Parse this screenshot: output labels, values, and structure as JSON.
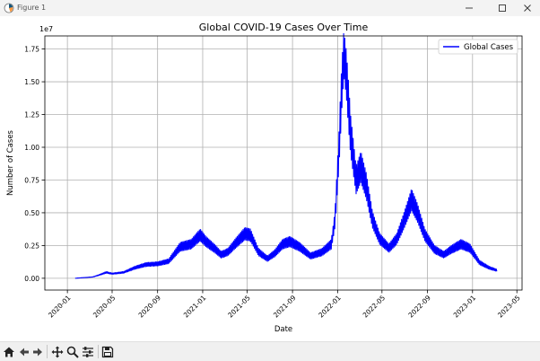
{
  "window": {
    "title": "Figure 1"
  },
  "toolbar": {
    "buttons": [
      {
        "name": "home-icon"
      },
      {
        "name": "back-arrow-icon"
      },
      {
        "name": "forward-arrow-icon"
      },
      {
        "name": "pan-icon"
      },
      {
        "name": "zoom-icon"
      },
      {
        "name": "configure-subplots-icon"
      },
      {
        "name": "save-icon"
      }
    ]
  },
  "chart_data": {
    "type": "line",
    "title": "Global COVID-19 Cases Over Time",
    "xlabel": "Date",
    "ylabel": "Number of Cases",
    "y_offset_label": "1e7",
    "x_tick_labels": [
      "2020-01",
      "2020-05",
      "2020-09",
      "2021-01",
      "2021-05",
      "2021-09",
      "2022-01",
      "2022-05",
      "2022-09",
      "2023-01",
      "2023-05"
    ],
    "y_tick_labels": [
      "0.00",
      "0.25",
      "0.50",
      "0.75",
      "1.00",
      "1.25",
      "1.50",
      "1.75"
    ],
    "xlim": [
      "2019-11-01",
      "2023-05-15"
    ],
    "ylim": [
      -0.09,
      1.85
    ],
    "grid": true,
    "legend_position": "top-right",
    "color": "#0000ff",
    "series": [
      {
        "name": "Global Cases",
        "points": [
          [
            "2020-01-22",
            0.0
          ],
          [
            "2020-02-15",
            0.005
          ],
          [
            "2020-03-10",
            0.01
          ],
          [
            "2020-04-01",
            0.03
          ],
          [
            "2020-04-15",
            0.045
          ],
          [
            "2020-05-01",
            0.035
          ],
          [
            "2020-06-01",
            0.045
          ],
          [
            "2020-07-01",
            0.08
          ],
          [
            "2020-08-01",
            0.105
          ],
          [
            "2020-09-01",
            0.11
          ],
          [
            "2020-10-01",
            0.13
          ],
          [
            "2020-11-01",
            0.24
          ],
          [
            "2020-12-01",
            0.26
          ],
          [
            "2020-12-25",
            0.33
          ],
          [
            "2021-01-10",
            0.28
          ],
          [
            "2021-02-01",
            0.23
          ],
          [
            "2021-02-20",
            0.18
          ],
          [
            "2021-03-10",
            0.2
          ],
          [
            "2021-04-01",
            0.27
          ],
          [
            "2021-04-25",
            0.34
          ],
          [
            "2021-05-10",
            0.33
          ],
          [
            "2021-06-01",
            0.2
          ],
          [
            "2021-06-25",
            0.15
          ],
          [
            "2021-07-15",
            0.19
          ],
          [
            "2021-08-05",
            0.26
          ],
          [
            "2021-08-25",
            0.28
          ],
          [
            "2021-09-20",
            0.24
          ],
          [
            "2021-10-20",
            0.17
          ],
          [
            "2021-11-20",
            0.2
          ],
          [
            "2021-12-15",
            0.26
          ],
          [
            "2021-12-25",
            0.45
          ],
          [
            "2022-01-05",
            1.0
          ],
          [
            "2022-01-12",
            1.45
          ],
          [
            "2022-01-18",
            1.72
          ],
          [
            "2022-01-25",
            1.55
          ],
          [
            "2022-02-05",
            1.1
          ],
          [
            "2022-02-20",
            0.75
          ],
          [
            "2022-03-05",
            0.85
          ],
          [
            "2022-03-20",
            0.7
          ],
          [
            "2022-04-05",
            0.45
          ],
          [
            "2022-04-25",
            0.3
          ],
          [
            "2022-05-20",
            0.23
          ],
          [
            "2022-06-10",
            0.3
          ],
          [
            "2022-07-01",
            0.45
          ],
          [
            "2022-07-20",
            0.6
          ],
          [
            "2022-08-05",
            0.5
          ],
          [
            "2022-08-25",
            0.33
          ],
          [
            "2022-09-20",
            0.22
          ],
          [
            "2022-10-15",
            0.18
          ],
          [
            "2022-11-05",
            0.22
          ],
          [
            "2022-12-01",
            0.26
          ],
          [
            "2022-12-25",
            0.23
          ],
          [
            "2023-01-20",
            0.12
          ],
          [
            "2023-02-15",
            0.08
          ],
          [
            "2023-03-09",
            0.06
          ]
        ]
      }
    ]
  }
}
